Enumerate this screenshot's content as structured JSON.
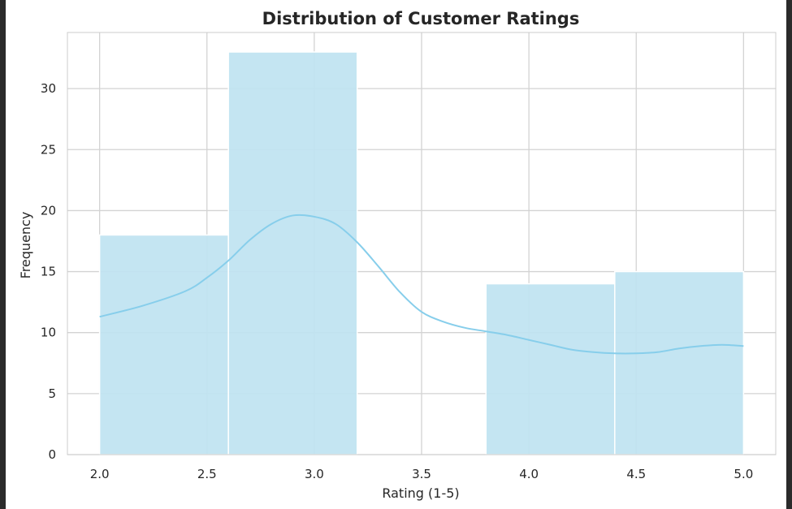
{
  "chart_data": {
    "type": "bar",
    "subtype": "histogram-with-kde",
    "title": "Distribution of Customer Ratings",
    "xlabel": "Rating (1-5)",
    "ylabel": "Frequency",
    "xlim": [
      1.85,
      5.15
    ],
    "ylim": [
      0,
      34.6
    ],
    "xticks": [
      "2.0",
      "2.5",
      "3.0",
      "3.5",
      "4.0",
      "4.5",
      "5.0"
    ],
    "yticks": [
      "0",
      "5",
      "10",
      "15",
      "20",
      "25",
      "30"
    ],
    "grid": true,
    "bins": [
      {
        "x0": 2.0,
        "x1": 2.6,
        "count": 18
      },
      {
        "x0": 2.6,
        "x1": 3.2,
        "count": 33
      },
      {
        "x0": 3.2,
        "x1": 3.8,
        "count": 0
      },
      {
        "x0": 3.8,
        "x1": 4.4,
        "count": 14
      },
      {
        "x0": 4.4,
        "x1": 5.0,
        "count": 15
      }
    ],
    "kde": {
      "x": [
        2.0,
        2.2,
        2.4,
        2.5,
        2.6,
        2.7,
        2.8,
        2.9,
        3.0,
        3.1,
        3.2,
        3.3,
        3.4,
        3.5,
        3.6,
        3.7,
        3.8,
        3.9,
        4.0,
        4.1,
        4.2,
        4.3,
        4.4,
        4.5,
        4.6,
        4.7,
        4.8,
        4.9,
        5.0
      ],
      "y": [
        11.3,
        12.2,
        13.4,
        14.5,
        15.9,
        17.6,
        18.9,
        19.6,
        19.5,
        18.9,
        17.4,
        15.4,
        13.3,
        11.7,
        10.9,
        10.4,
        10.1,
        9.8,
        9.4,
        9.0,
        8.6,
        8.4,
        8.3,
        8.3,
        8.4,
        8.7,
        8.9,
        9.0,
        8.9
      ]
    },
    "colors": {
      "bar_fill": "#bfe3f1",
      "bar_edge": "#ffffff",
      "kde_line": "#87ceeb",
      "grid": "#d3d3d3",
      "text": "#262626"
    }
  }
}
